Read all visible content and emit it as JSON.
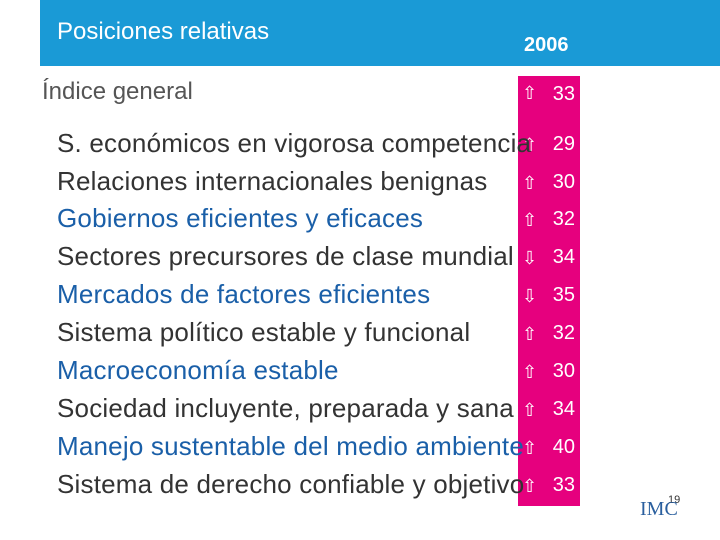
{
  "header": {
    "title": "Posiciones relativas",
    "year": "2006"
  },
  "overall": {
    "label": "Índice general",
    "value": "33"
  },
  "rows": [
    {
      "label": "S. económicos en vigorosa competencia",
      "value": "29"
    },
    {
      "label": "Relaciones internacionales benignas",
      "value": "30"
    },
    {
      "label": "Gobiernos eficientes y eficaces",
      "value": "32"
    },
    {
      "label": "Sectores precursores de clase mundial",
      "value": "34"
    },
    {
      "label": "Mercados de factores eficientes",
      "value": "35"
    },
    {
      "label": "Sistema político estable y funcional",
      "value": "32"
    },
    {
      "label": "Macroeconomía estable",
      "value": "30"
    },
    {
      "label": "Sociedad incluyente, preparada y sana",
      "value": "34"
    },
    {
      "label": "Manejo sustentable del medio ambiente",
      "value": "40"
    },
    {
      "label": "Sistema de derecho confiable y objetivo",
      "value": "33"
    }
  ],
  "footer": {
    "page": "19",
    "logo": "IMC"
  }
}
